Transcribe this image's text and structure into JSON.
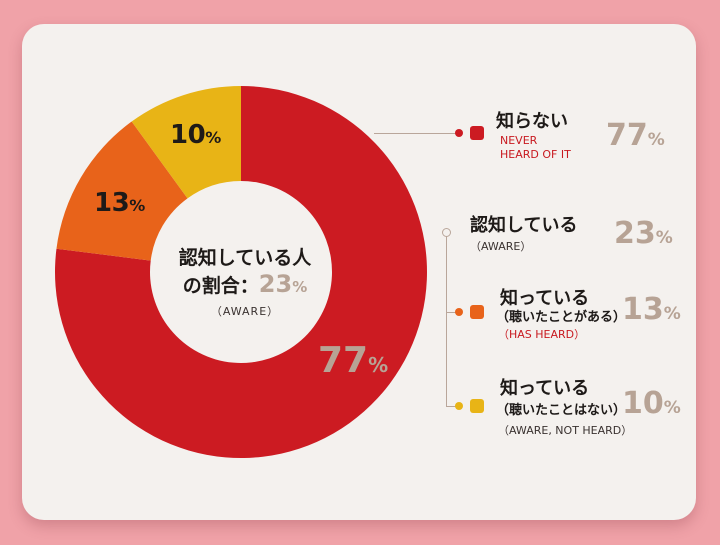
{
  "chart_data": {
    "type": "pie",
    "donut": true,
    "categories": [
      "知らない",
      "知っている（聴いたことがある）",
      "知っている（聴いたことはない）"
    ],
    "values": [
      77,
      13,
      10
    ],
    "colors": [
      "#cc1b22",
      "#e8631a",
      "#e8b416"
    ],
    "center": {
      "title": "認知している人",
      "row_label": "の割合：",
      "value": "23",
      "unit": "%",
      "sub": "（AWARE）"
    },
    "segment_labels": [
      {
        "value": "77",
        "unit": "%"
      },
      {
        "value": "13",
        "unit": "%"
      },
      {
        "value": "10",
        "unit": "%"
      }
    ],
    "legend": {
      "never": {
        "title": "知らない",
        "en1": "NEVER",
        "en2": "HEARD OF IT",
        "value": "77",
        "unit": "%",
        "color": "#c81a20"
      },
      "aware": {
        "title": "認知している",
        "en": "（AWARE）",
        "value": "23",
        "unit": "%"
      },
      "has_heard": {
        "title": "知っている",
        "jp_sub": "（聴いたことがある）",
        "en": "（HAS HEARD）",
        "value": "13",
        "unit": "%",
        "color": "#e8631a"
      },
      "not_heard": {
        "title": "知っている",
        "jp_sub": "（聴いたことはない）",
        "en": "（AWARE, NOT HEARD）",
        "value": "10",
        "unit": "%",
        "color": "#e8b416"
      }
    }
  }
}
